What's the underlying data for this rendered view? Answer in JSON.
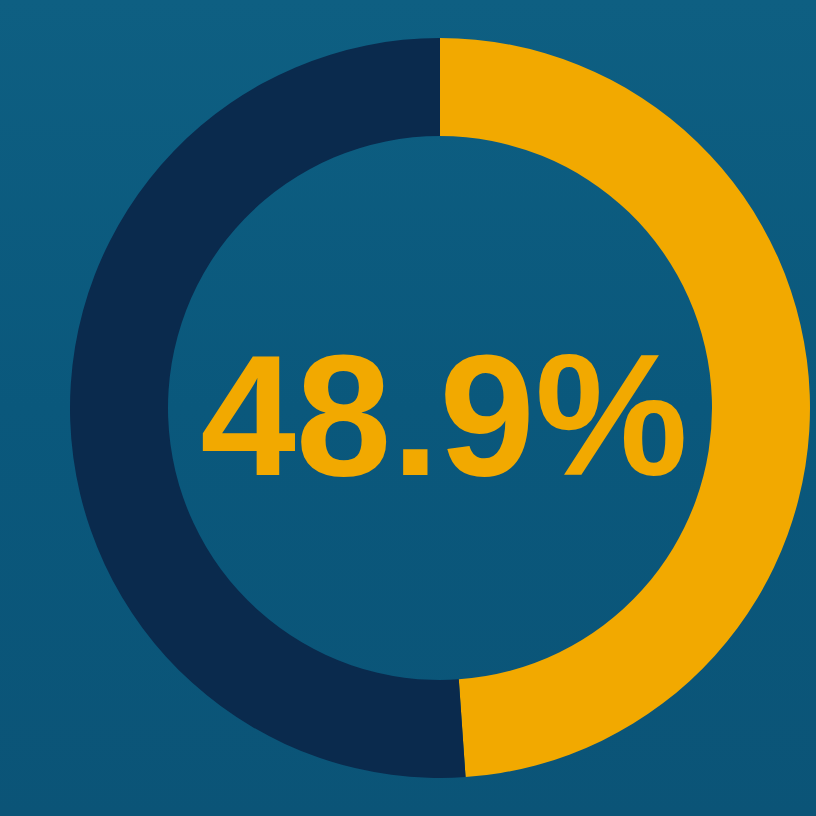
{
  "chart_data": {
    "type": "donut",
    "values": [
      48.9,
      51.1
    ],
    "value_labels": [
      "48.9%",
      null
    ],
    "colors": [
      "#f2a900",
      "#0a2a4d"
    ],
    "data_labels": true
  }
}
